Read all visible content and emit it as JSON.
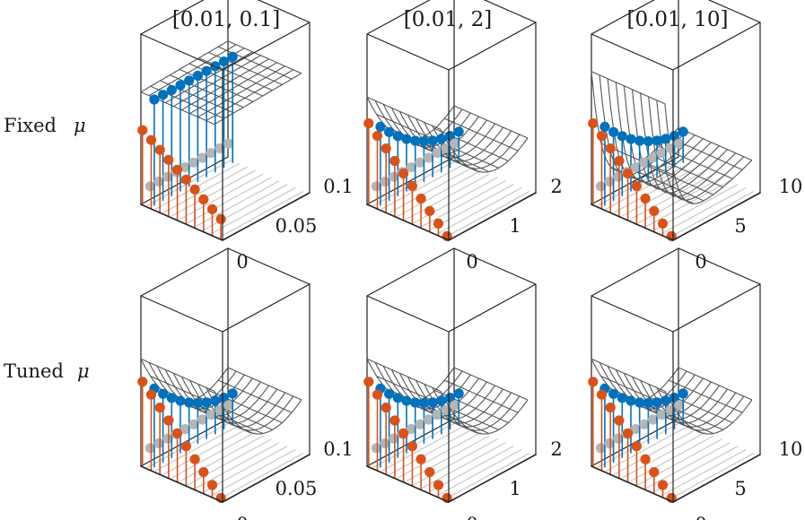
{
  "chart_data": {
    "type": "3d-stem-surface",
    "columns": [
      "[0.01, 0.1]",
      "[0.01, 2]",
      "[0.01, 10]"
    ],
    "rows": [
      {
        "label": "Fixed",
        "symbol": "μ"
      },
      {
        "label": "Tuned",
        "symbol": "μ"
      }
    ],
    "tick_labels": [
      [
        "0",
        "0.05",
        "0.1"
      ],
      [
        "0",
        "1",
        "2"
      ],
      [
        "0",
        "5",
        "10"
      ]
    ],
    "colors": {
      "orange": "#d95319",
      "blue": "#0072bd",
      "gray": "#b5b5b5",
      "mesh": "#555555",
      "axes": "#222222"
    },
    "panels": [
      {
        "row": 0,
        "col": 0,
        "surface": "flat-high",
        "orange_top": 0.44,
        "orange_bottom": 0.12,
        "blue": 0.62,
        "gray": 0.02
      },
      {
        "row": 0,
        "col": 1,
        "surface": "bowl",
        "orange_top": 0.48,
        "orange_bottom": 0.02,
        "blue": 0.12,
        "gray": 0.02
      },
      {
        "row": 0,
        "col": 2,
        "surface": "steep",
        "orange_top": 0.48,
        "orange_bottom": 0.02,
        "blue": 0.12,
        "gray": 0.02
      },
      {
        "row": 1,
        "col": 0,
        "surface": "bowl",
        "orange_top": 0.5,
        "orange_bottom": 0.02,
        "blue": 0.12,
        "gray": 0.02
      },
      {
        "row": 1,
        "col": 1,
        "surface": "bowl",
        "orange_top": 0.5,
        "orange_bottom": 0.02,
        "blue": 0.12,
        "gray": 0.02
      },
      {
        "row": 1,
        "col": 2,
        "surface": "bowl",
        "orange_top": 0.5,
        "orange_bottom": 0.02,
        "blue": 0.12,
        "gray": 0.02
      }
    ],
    "n_stems": 10
  }
}
